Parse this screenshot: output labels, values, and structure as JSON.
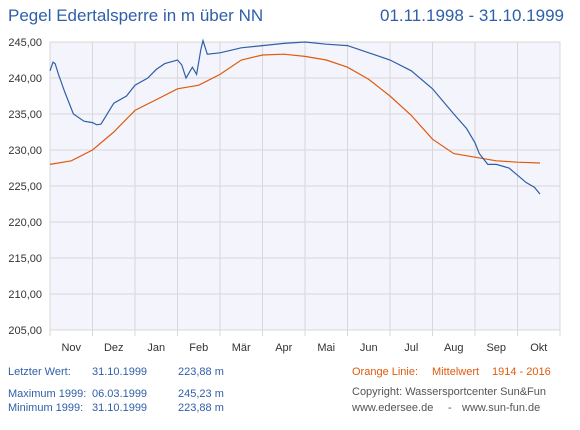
{
  "header": {
    "title": "Pegel Edertalsperre in m über NN",
    "period": "01.11.1998 - 31.10.1999"
  },
  "colors": {
    "series_1999": "#2f5fa8",
    "series_mean": "#e05a0c",
    "plot_fill": "#f4f5fc",
    "grid": "#d8d8d8"
  },
  "chart_data": {
    "type": "line",
    "title": "Pegel Edertalsperre in m über NN",
    "xlabel": "",
    "ylabel": "",
    "ylim": [
      205,
      245
    ],
    "y_ticks": [
      "205,00",
      "210,00",
      "215,00",
      "220,00",
      "225,00",
      "230,00",
      "235,00",
      "240,00",
      "245,00"
    ],
    "x_ticks": [
      "Nov",
      "Dez",
      "Jan",
      "Feb",
      "Mär",
      "Apr",
      "Mai",
      "Jun",
      "Jul",
      "Aug",
      "Sep",
      "Okt"
    ],
    "grid": true,
    "legend": "none",
    "series": [
      {
        "x_month_index": [
          0,
          0.07,
          0.12,
          0.2,
          0.35,
          0.55,
          0.8,
          1.0,
          1.1,
          1.2,
          1.5,
          1.8,
          2.0,
          2.3,
          2.5,
          2.7,
          3.0,
          3.1,
          3.2,
          3.35,
          3.45,
          3.55,
          3.6,
          3.7,
          4.0,
          4.5,
          5.0,
          5.5,
          6.0,
          6.5,
          7.0,
          7.5,
          8.0,
          8.5,
          9.0,
          9.5,
          9.8,
          10.0,
          10.1,
          10.3,
          10.5,
          10.8,
          11.0,
          11.2,
          11.4,
          11.53
        ],
        "values": [
          241.0,
          242.2,
          242.0,
          240.5,
          238.0,
          235.0,
          234.0,
          233.8,
          233.5,
          233.6,
          236.5,
          237.5,
          239.0,
          240.0,
          241.2,
          242.0,
          242.5,
          241.8,
          240.0,
          241.5,
          240.5,
          244.0,
          245.2,
          243.3,
          243.5,
          244.2,
          244.5,
          244.8,
          245.0,
          244.7,
          244.5,
          243.5,
          242.5,
          241.0,
          238.5,
          235.0,
          233.0,
          231.0,
          229.5,
          228.0,
          228.0,
          227.5,
          226.5,
          225.5,
          224.8,
          223.88
        ]
      },
      {
        "x_month_index": [
          0,
          0.5,
          1.0,
          1.5,
          2.0,
          2.5,
          3.0,
          3.5,
          4.0,
          4.5,
          5.0,
          5.5,
          6.0,
          6.5,
          7.0,
          7.5,
          8.0,
          8.5,
          9.0,
          9.5,
          10.0,
          10.5,
          11.0,
          11.53
        ],
        "values": [
          228.0,
          228.5,
          230.0,
          232.5,
          235.5,
          237.0,
          238.5,
          239.0,
          240.5,
          242.5,
          243.2,
          243.3,
          243.0,
          242.5,
          241.5,
          239.8,
          237.5,
          234.8,
          231.5,
          229.5,
          229.0,
          228.5,
          228.3,
          228.2
        ]
      }
    ]
  },
  "info": {
    "last_label": "Letzter Wert:",
    "last_date": "31.10.1999",
    "last_value": "223,88 m",
    "max_label": "Maximum 1999:",
    "max_date": "06.03.1999",
    "max_value": "245,23 m",
    "min_label": "Minimum  1999:",
    "min_date": "31.10.1999",
    "min_value": "223,88 m",
    "orange_label": "Orange Linie:",
    "mean_label": "Mittelwert",
    "mean_years": "1914 - 2016",
    "copyright": "Copyright: Wassersportcenter Sun&Fun",
    "web1": "www.edersee.de",
    "sep": "-",
    "web2": "www.sun-fun.de"
  }
}
